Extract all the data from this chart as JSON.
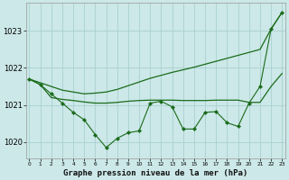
{
  "x": [
    0,
    1,
    2,
    3,
    4,
    5,
    6,
    7,
    8,
    9,
    10,
    11,
    12,
    13,
    14,
    15,
    16,
    17,
    18,
    19,
    20,
    21,
    22,
    23
  ],
  "line_smooth": [
    1021.7,
    1021.6,
    1021.5,
    1021.4,
    1021.35,
    1021.3,
    1021.32,
    1021.35,
    1021.42,
    1021.52,
    1021.62,
    1021.72,
    1021.8,
    1021.88,
    1021.95,
    1022.02,
    1022.1,
    1022.18,
    1022.26,
    1022.34,
    1022.42,
    1022.5,
    1023.05,
    1023.5
  ],
  "line_flat": [
    1021.7,
    1021.55,
    1021.2,
    1021.15,
    1021.12,
    1021.08,
    1021.05,
    1021.05,
    1021.07,
    1021.1,
    1021.12,
    1021.13,
    1021.13,
    1021.13,
    1021.12,
    1021.12,
    1021.12,
    1021.13,
    1021.13,
    1021.13,
    1021.07,
    1021.07,
    1021.5,
    1021.85
  ],
  "line_detail": [
    1021.7,
    1021.55,
    1021.3,
    1021.05,
    1020.8,
    1020.6,
    1020.2,
    1019.85,
    1020.1,
    1020.25,
    1020.3,
    1021.05,
    1021.1,
    1020.95,
    1020.35,
    1020.35,
    1020.8,
    1020.82,
    1020.52,
    1020.42,
    1021.05,
    1021.5,
    1023.05,
    1023.5
  ],
  "bg_color": "#cce8e8",
  "grid_color": "#aacfcf",
  "line_color": "#1a6b1a",
  "ylim_min": 1019.55,
  "ylim_max": 1023.75,
  "yticks": [
    1020,
    1021,
    1022,
    1023
  ],
  "xlabel": "Graphe pression niveau de la mer (hPa)",
  "xlabel_fontsize": 6.5,
  "axis_fontsize": 6.0,
  "xtick_fontsize": 4.2
}
